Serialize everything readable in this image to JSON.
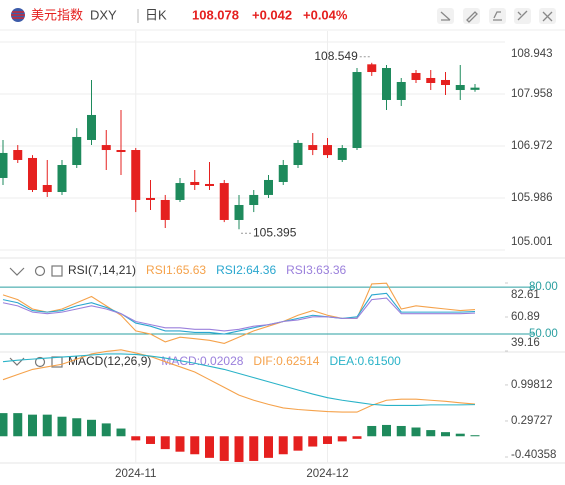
{
  "header": {
    "title": "美元指数",
    "symbol": "DXY",
    "period": "日K",
    "price": "108.078",
    "change": "+0.042",
    "change_pct": "+0.04%"
  },
  "chart_data": [
    {
      "type": "candlestick",
      "categories": [
        null,
        null,
        null,
        null,
        null,
        null,
        null,
        null,
        null,
        "2024-11",
        null,
        null,
        null,
        null,
        null,
        null,
        null,
        null,
        null,
        null,
        null,
        null,
        "2024-12",
        null,
        null,
        null,
        null,
        null,
        null,
        null,
        null,
        null,
        null
      ],
      "open": [
        106.366,
        106.896,
        106.745,
        106.233,
        106.1,
        106.612,
        107.086,
        106.99,
        106.896,
        106.896,
        105.987,
        105.949,
        105.949,
        106.29,
        106.252,
        106.27,
        105.57,
        105.854,
        106.044,
        106.29,
        106.612,
        106.99,
        106.99,
        106.707,
        106.934,
        108.52,
        107.844,
        107.844,
        108.356,
        108.261,
        108.223,
        108.033,
        108.036
      ],
      "high": [
        107.086,
        106.99,
        106.8,
        106.707,
        106.707,
        107.31,
        108.223,
        107.275,
        107.654,
        106.934,
        106.328,
        106.044,
        106.366,
        106.517,
        106.669,
        106.328,
        106.044,
        106.138,
        106.423,
        106.707,
        107.086,
        107.218,
        107.124,
        106.99,
        108.45,
        108.549,
        108.507,
        108.261,
        108.412,
        108.412,
        108.374,
        108.507,
        108.147
      ],
      "low": [
        106.233,
        106.65,
        106.1,
        106.006,
        106.044,
        106.555,
        106.99,
        106.517,
        106.423,
        105.72,
        105.76,
        105.418,
        105.911,
        106.138,
        106.138,
        105.53,
        105.395,
        105.72,
        105.987,
        106.233,
        106.555,
        106.8,
        106.745,
        106.669,
        106.896,
        108.3,
        107.654,
        107.73,
        108.166,
        108.033,
        107.939,
        107.844,
        108.0
      ],
      "close": [
        106.84,
        106.707,
        106.138,
        106.1,
        106.612,
        107.143,
        107.56,
        106.896,
        106.858,
        105.949,
        105.949,
        105.57,
        106.27,
        106.233,
        106.214,
        105.57,
        105.854,
        106.044,
        106.328,
        106.612,
        107.03,
        106.896,
        106.8,
        106.934,
        108.374,
        108.374,
        108.45,
        108.185,
        108.223,
        108.166,
        108.128,
        108.128,
        108.078
      ],
      "up_color": "#1e8a5c",
      "down_color": "#e5201f",
      "ylim": [
        105.001,
        108.943
      ],
      "yticks": [
        108.943,
        107.958,
        106.972,
        105.986,
        105.001
      ],
      "grid": true
    },
    {
      "type": "line",
      "title": "RSI(7,14,21)",
      "series": [
        {
          "name": "RSI1:65.63",
          "color": "#f5a24b",
          "values": [
            75,
            72,
            66,
            64,
            66,
            70,
            74,
            68,
            62,
            52,
            50,
            45,
            48,
            47,
            46,
            44,
            48,
            52,
            55,
            58,
            62,
            65,
            62,
            60,
            60,
            82,
            82.5,
            66,
            68,
            67,
            66,
            65,
            65.63
          ]
        },
        {
          "name": "RSI2:64.36",
          "color": "#2aa7cf",
          "values": [
            72,
            70,
            65,
            64,
            65,
            68,
            70,
            67,
            63,
            57,
            55,
            52,
            52,
            51,
            51,
            50,
            52,
            54,
            56,
            58,
            60,
            62,
            61,
            60,
            61,
            75,
            76,
            64,
            64,
            64,
            64,
            64,
            64.36
          ]
        },
        {
          "name": "RSI3:63.36",
          "color": "#9b80dc",
          "values": [
            70,
            68,
            64,
            63,
            64,
            66,
            68,
            66,
            63,
            58,
            56,
            54,
            54,
            53,
            53,
            52,
            53,
            55,
            56,
            58,
            59,
            61,
            61,
            60,
            60,
            72,
            73,
            63,
            63,
            63,
            63,
            63,
            63.36
          ]
        }
      ],
      "ylim": [
        39.16,
        82.61
      ],
      "yticks": [
        82.61,
        60.89,
        39.16
      ],
      "hlines": [
        {
          "value": 80,
          "label": "80.00"
        },
        {
          "value": 50,
          "label": "50.00"
        }
      ],
      "hline_color": "#2a9fa0"
    },
    {
      "type": "macd",
      "title": "MACD(12,26,9)",
      "series": [
        {
          "name": "MACD:0.02028",
          "color": "#9b80dc",
          "style": "bar",
          "values": [
            0.45,
            0.45,
            0.42,
            0.42,
            0.38,
            0.35,
            0.32,
            0.25,
            0.15,
            -0.08,
            -0.15,
            -0.25,
            -0.3,
            -0.35,
            -0.42,
            -0.48,
            -0.5,
            -0.48,
            -0.42,
            -0.35,
            -0.28,
            -0.2,
            -0.15,
            -0.1,
            -0.05,
            0.2,
            0.22,
            0.2,
            0.17,
            0.12,
            0.08,
            0.05,
            0.02028
          ]
        },
        {
          "name": "DIF:0.62514",
          "color": "#f5a24b",
          "style": "line",
          "values": [
            1.1,
            1.2,
            1.3,
            1.35,
            1.4,
            1.5,
            1.6,
            1.65,
            1.68,
            1.62,
            1.55,
            1.45,
            1.35,
            1.25,
            1.1,
            0.95,
            0.8,
            0.7,
            0.62,
            0.55,
            0.52,
            0.5,
            0.48,
            0.47,
            0.47,
            0.6,
            0.7,
            0.72,
            0.72,
            0.7,
            0.68,
            0.65,
            0.62514
          ]
        },
        {
          "name": "DEA:0.61500",
          "color": "#2ab3c8",
          "style": "line",
          "values": [
            1.45,
            1.48,
            1.5,
            1.52,
            1.54,
            1.56,
            1.58,
            1.6,
            1.6,
            1.59,
            1.56,
            1.52,
            1.47,
            1.42,
            1.36,
            1.3,
            1.22,
            1.14,
            1.06,
            0.98,
            0.9,
            0.82,
            0.75,
            0.7,
            0.66,
            0.62,
            0.6,
            0.6,
            0.6,
            0.61,
            0.61,
            0.61,
            0.615
          ]
        }
      ],
      "up_color": "#1e8a5c",
      "down_color": "#e5201f",
      "ylim": [
        -0.52,
        1.58
      ],
      "yticks": [
        0.99812,
        0.29727,
        -0.40358
      ]
    }
  ]
}
